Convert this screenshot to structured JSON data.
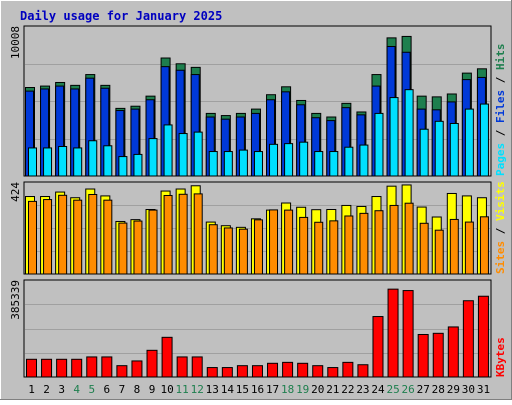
{
  "title": "Daily usage for January 2025",
  "colors": {
    "background": "#c0c0c0",
    "title": "#0000c0",
    "hits": "#1e7f4e",
    "files": "#0039d8",
    "pages": "#00e0ff",
    "visits": "#ffff00",
    "sites": "#ff8c00",
    "kbytes": "#ff0000",
    "weekend_day": "#1e7f4e",
    "weekday": "#000000"
  },
  "legend": {
    "pages": "Pages",
    "files": "Files",
    "hits": "Hits",
    "sites": "Sites",
    "visits": "Visits",
    "kbytes": "KBytes",
    "sep": "/"
  },
  "chart_data": [
    {
      "type": "bar",
      "name": "hits-files-pages",
      "axis_max_label": "10008",
      "ylim": [
        0,
        10008
      ],
      "categories": [
        "1",
        "2",
        "3",
        "4",
        "5",
        "6",
        "7",
        "8",
        "9",
        "10",
        "11",
        "12",
        "13",
        "14",
        "15",
        "16",
        "17",
        "18",
        "19",
        "20",
        "21",
        "22",
        "23",
        "24",
        "25",
        "26",
        "27",
        "28",
        "29",
        "30",
        "31"
      ],
      "weekend_days": [
        "4",
        "5",
        "11",
        "12",
        "18",
        "19",
        "25",
        "26"
      ],
      "series": [
        {
          "name": "Hits",
          "values": [
            6150,
            6250,
            6500,
            6300,
            7050,
            6300,
            4700,
            4850,
            5550,
            8200,
            7800,
            7550,
            4350,
            4200,
            4350,
            4650,
            5650,
            6200,
            5250,
            4350,
            4100,
            5050,
            4450,
            7050,
            9600,
            9700,
            5550,
            5500,
            5700,
            7150,
            7450
          ]
        },
        {
          "name": "Files",
          "values": [
            5900,
            6050,
            6250,
            6050,
            6800,
            6100,
            4550,
            4650,
            5300,
            7600,
            7350,
            7050,
            4100,
            3950,
            4100,
            4350,
            5300,
            5850,
            4950,
            4050,
            3850,
            4750,
            4250,
            6250,
            9000,
            8600,
            4650,
            4600,
            5150,
            6700,
            6850
          ]
        },
        {
          "name": "Pages",
          "values": [
            1950,
            1950,
            2050,
            1950,
            2450,
            2100,
            1350,
            1500,
            2600,
            3550,
            2950,
            3050,
            1700,
            1700,
            1800,
            1700,
            2200,
            2250,
            2350,
            1700,
            1700,
            2000,
            2150,
            4350,
            5450,
            6000,
            3250,
            3800,
            3650,
            4650,
            5000
          ]
        }
      ]
    },
    {
      "type": "bar",
      "name": "visits-sites",
      "axis_max_label": "424",
      "ylim": [
        0,
        424
      ],
      "categories": [
        "1",
        "2",
        "3",
        "4",
        "5",
        "6",
        "7",
        "8",
        "9",
        "10",
        "11",
        "12",
        "13",
        "14",
        "15",
        "16",
        "17",
        "18",
        "19",
        "20",
        "21",
        "22",
        "23",
        "24",
        "25",
        "26",
        "27",
        "28",
        "29",
        "30",
        "31"
      ],
      "series": [
        {
          "name": "Visits",
          "values": [
            382,
            382,
            404,
            376,
            419,
            385,
            259,
            268,
            318,
            409,
            419,
            435,
            256,
            238,
            230,
            272,
            315,
            350,
            329,
            317,
            318,
            338,
            333,
            382,
            433,
            439,
            330,
            281,
            397,
            385,
            376
          ]
        },
        {
          "name": "Sites",
          "values": [
            358,
            367,
            388,
            364,
            392,
            364,
            251,
            261,
            315,
            387,
            393,
            395,
            243,
            227,
            221,
            267,
            316,
            315,
            279,
            255,
            262,
            286,
            299,
            312,
            338,
            349,
            250,
            216,
            269,
            256,
            282
          ]
        }
      ]
    },
    {
      "type": "bar",
      "name": "kbytes",
      "axis_max_label": "385339",
      "ylim": [
        0,
        385339
      ],
      "categories": [
        "1",
        "2",
        "3",
        "4",
        "5",
        "6",
        "7",
        "8",
        "9",
        "10",
        "11",
        "12",
        "13",
        "14",
        "15",
        "16",
        "17",
        "18",
        "19",
        "20",
        "21",
        "22",
        "23",
        "24",
        "25",
        "26",
        "27",
        "28",
        "29",
        "30",
        "31"
      ],
      "series": [
        {
          "name": "KBytes",
          "values": [
            75000,
            75000,
            75000,
            75000,
            85000,
            85000,
            48000,
            68000,
            113000,
            168000,
            85000,
            85000,
            40000,
            40000,
            48000,
            48000,
            58000,
            62000,
            58000,
            48000,
            40000,
            62000,
            52000,
            256000,
            372000,
            366000,
            180000,
            185000,
            212000,
            323000,
            342000
          ]
        }
      ]
    }
  ]
}
